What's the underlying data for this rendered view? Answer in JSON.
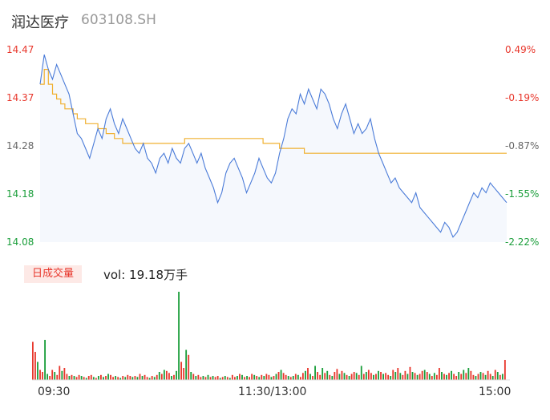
{
  "header": {
    "name": "润达医疗",
    "code": "603108.SH"
  },
  "price_axis": {
    "ticks": [
      "14.47",
      "14.37",
      "14.28",
      "14.18",
      "14.08"
    ],
    "pct_ticks": [
      "0.49%",
      "-0.19%",
      "-0.87%",
      "-1.55%",
      "-2.22%"
    ],
    "colors": [
      "#e8372c",
      "#e8372c",
      "#666666",
      "#1a9e3a",
      "#1a9e3a"
    ]
  },
  "volume_panel": {
    "badge": "日成交量",
    "vol_text": "vol: 19.18万手"
  },
  "time_axis": {
    "labels": [
      "09:30",
      "11:30/13:00",
      "15:00"
    ]
  },
  "colors": {
    "price_line": "#4a7bd8",
    "avg_line": "#f0b030",
    "up": "#e8372c",
    "down": "#1a9e3a",
    "area": "#f5f8fd"
  },
  "chart_data": [
    {
      "type": "line",
      "title": "",
      "ylim": [
        14.08,
        14.47
      ],
      "x_range": [
        "09:30",
        "15:00"
      ],
      "series": [
        {
          "values": [
            14.4,
            14.46,
            14.43,
            14.41,
            14.44,
            14.42,
            14.4,
            14.38,
            14.34,
            14.3,
            14.29,
            14.27,
            14.25,
            14.28,
            14.31,
            14.29,
            14.33,
            14.35,
            14.32,
            14.3,
            14.33,
            14.31,
            14.29,
            14.27,
            14.26,
            14.28,
            14.25,
            14.24,
            14.22,
            14.25,
            14.26,
            14.24,
            14.27,
            14.25,
            14.24,
            14.27,
            14.28,
            14.26,
            14.24,
            14.26,
            14.23,
            14.21,
            14.19,
            14.16,
            14.18,
            14.22,
            14.24,
            14.25,
            14.23,
            14.21,
            14.18,
            14.2,
            14.22,
            14.25,
            14.23,
            14.21,
            14.2,
            14.22,
            14.26,
            14.29,
            14.33,
            14.35,
            14.34,
            14.38,
            14.36,
            14.39,
            14.37,
            14.35,
            14.39,
            14.38,
            14.36,
            14.33,
            14.31,
            14.34,
            14.36,
            14.33,
            14.3,
            14.32,
            14.3,
            14.31,
            14.33,
            14.29,
            14.26,
            14.24,
            14.22,
            14.2,
            14.21,
            14.19,
            14.18,
            14.17,
            14.16,
            14.18,
            14.15,
            14.14,
            14.13,
            14.12,
            14.11,
            14.1,
            14.12,
            14.11,
            14.09,
            14.1,
            14.12,
            14.14,
            14.16,
            14.18,
            14.17,
            14.19,
            14.18,
            14.2,
            14.19,
            14.18,
            14.17,
            14.16
          ]
        },
        {
          "values": [
            14.4,
            14.43,
            14.4,
            14.38,
            14.37,
            14.36,
            14.35,
            14.35,
            14.34,
            14.33,
            14.33,
            14.32,
            14.32,
            14.32,
            14.31,
            14.31,
            14.3,
            14.3,
            14.29,
            14.29,
            14.28,
            14.28,
            14.28,
            14.28,
            14.28,
            14.28,
            14.28,
            14.28,
            14.28,
            14.28,
            14.28,
            14.28,
            14.28,
            14.28,
            14.28,
            14.29,
            14.29,
            14.29,
            14.29,
            14.29,
            14.29,
            14.29,
            14.29,
            14.29,
            14.29,
            14.29,
            14.29,
            14.29,
            14.29,
            14.29,
            14.29,
            14.29,
            14.29,
            14.29,
            14.28,
            14.28,
            14.28,
            14.28,
            14.27,
            14.27,
            14.27,
            14.27,
            14.27,
            14.27,
            14.26,
            14.26,
            14.26,
            14.26,
            14.26,
            14.26,
            14.26,
            14.26,
            14.26,
            14.26,
            14.26,
            14.26,
            14.26,
            14.26,
            14.26,
            14.26,
            14.26,
            14.26,
            14.26,
            14.26,
            14.26,
            14.26,
            14.26,
            14.26,
            14.26,
            14.26,
            14.26,
            14.26,
            14.26,
            14.26,
            14.26,
            14.26,
            14.26,
            14.26,
            14.26,
            14.26,
            14.26,
            14.26,
            14.26,
            14.26,
            14.26,
            14.26,
            14.26,
            14.26,
            14.26,
            14.26,
            14.26,
            14.26,
            14.26,
            14.26
          ]
        }
      ]
    },
    {
      "type": "bar",
      "title": "",
      "values": [
        38,
        28,
        18,
        10,
        8,
        40,
        6,
        4,
        10,
        8,
        5,
        14,
        9,
        12,
        6,
        4,
        5,
        4,
        3,
        5,
        4,
        3,
        2,
        4,
        5,
        3,
        2,
        4,
        5,
        3,
        4,
        6,
        5,
        3,
        4,
        3,
        2,
        4,
        3,
        5,
        4,
        3,
        4,
        3,
        6,
        4,
        5,
        3,
        2,
        4,
        3,
        5,
        8,
        6,
        10,
        9,
        7,
        4,
        5,
        9,
        88,
        18,
        12,
        30,
        25,
        8,
        6,
        4,
        5,
        3,
        4,
        3,
        5,
        3,
        4,
        3,
        4,
        2,
        3,
        4,
        3,
        2,
        5,
        3,
        4,
        6,
        5,
        3,
        4,
        3,
        6,
        5,
        4,
        3,
        5,
        4,
        6,
        5,
        3,
        4,
        6,
        8,
        10,
        7,
        5,
        4,
        3,
        4,
        6,
        5,
        3,
        7,
        9,
        12,
        6,
        4,
        14,
        8,
        5,
        12,
        7,
        9,
        5,
        4,
        8,
        11,
        6,
        9,
        7,
        5,
        4,
        6,
        8,
        7,
        5,
        14,
        6,
        8,
        10,
        7,
        5,
        6,
        9,
        8,
        6,
        7,
        5,
        4,
        10,
        8,
        12,
        7,
        5,
        9,
        6,
        13,
        8,
        7,
        5,
        6,
        9,
        10,
        8,
        6,
        4,
        7,
        5,
        12,
        8,
        6,
        5,
        7,
        9,
        6,
        4,
        8,
        6,
        10,
        7,
        12,
        9,
        5,
        4,
        6,
        8,
        7,
        5,
        9,
        6,
        4,
        10,
        8,
        5,
        6,
        20
      ],
      "colors": [
        "up",
        "up",
        "down",
        "up",
        "up",
        "down",
        "down",
        "up",
        "up",
        "down",
        "up",
        "up",
        "down",
        "up",
        "up",
        "down",
        "up",
        "down",
        "up",
        "up",
        "down",
        "up",
        "down",
        "up",
        "up",
        "down",
        "up",
        "down",
        "up",
        "down",
        "up",
        "down",
        "up",
        "up",
        "down",
        "up",
        "down",
        "up",
        "down",
        "up",
        "up",
        "down",
        "up",
        "down",
        "up",
        "down",
        "up",
        "up",
        "down",
        "up",
        "down",
        "up",
        "down",
        "up",
        "down",
        "up",
        "up",
        "down",
        "up",
        "down",
        "down",
        "up",
        "up",
        "down",
        "up",
        "down",
        "up",
        "down",
        "up",
        "up",
        "down",
        "up",
        "down",
        "up",
        "down",
        "up",
        "up",
        "down",
        "up",
        "down",
        "up",
        "down",
        "up",
        "up",
        "down",
        "up",
        "down",
        "up",
        "down",
        "up",
        "up",
        "down",
        "up",
        "down",
        "up",
        "down",
        "up",
        "up",
        "down",
        "up",
        "down",
        "up",
        "down",
        "up",
        "up",
        "down",
        "up",
        "down",
        "up",
        "down",
        "up",
        "up",
        "down",
        "up",
        "down",
        "up",
        "down",
        "up",
        "up",
        "down",
        "up",
        "down",
        "up",
        "down",
        "up",
        "up",
        "down",
        "up",
        "down",
        "up",
        "down",
        "up",
        "up",
        "down",
        "up",
        "down",
        "up",
        "down",
        "up",
        "up",
        "down",
        "up",
        "down",
        "up",
        "down",
        "up",
        "up",
        "down",
        "up",
        "down",
        "up",
        "down",
        "up",
        "up",
        "down",
        "up",
        "down",
        "up",
        "down",
        "up",
        "up",
        "down",
        "up",
        "down",
        "up",
        "down",
        "up",
        "up",
        "down",
        "up",
        "down",
        "up",
        "down",
        "up",
        "up",
        "down",
        "up",
        "down",
        "up",
        "down",
        "up",
        "up",
        "down",
        "up",
        "down",
        "up",
        "down",
        "up",
        "up",
        "down",
        "up",
        "down",
        "up",
        "down",
        "up",
        "up",
        "up"
      ]
    }
  ]
}
